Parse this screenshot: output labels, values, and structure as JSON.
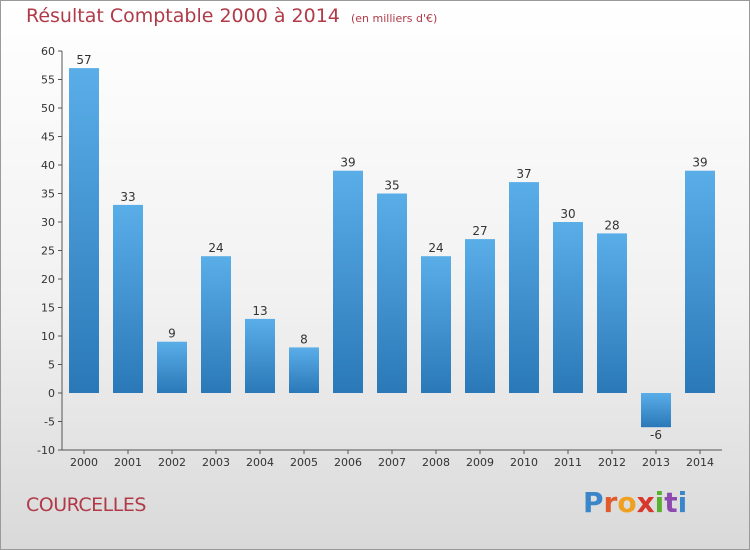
{
  "title": "Résultat Comptable 2000 à 2014",
  "unit": "(en milliers d'€)",
  "commune": "COURCELLES",
  "logo": {
    "text": "Proxiti",
    "colors": [
      "#3a86c8",
      "#e05a2b",
      "#f0a020",
      "#d8382b",
      "#5ab030",
      "#8c4ab0",
      "#3a86c8"
    ]
  },
  "colors": {
    "bar_top": "#5aaee8",
    "bar_bottom": "#2a78b8",
    "text_accent": "#b03a48"
  },
  "chart_data": {
    "type": "bar",
    "title": "Résultat Comptable 2000 à 2014",
    "xlabel": "",
    "ylabel": "",
    "ylim": [
      -10,
      60
    ],
    "yticks": [
      -10,
      -5,
      0,
      5,
      10,
      15,
      20,
      25,
      30,
      35,
      40,
      45,
      50,
      55,
      60
    ],
    "categories": [
      "2000",
      "2001",
      "2002",
      "2003",
      "2004",
      "2005",
      "2006",
      "2007",
      "2008",
      "2009",
      "2010",
      "2011",
      "2012",
      "2013",
      "2014"
    ],
    "values": [
      57,
      33,
      9,
      24,
      13,
      8,
      39,
      35,
      24,
      27,
      37,
      30,
      28,
      -6,
      39
    ],
    "grid": false,
    "legend": "none"
  }
}
